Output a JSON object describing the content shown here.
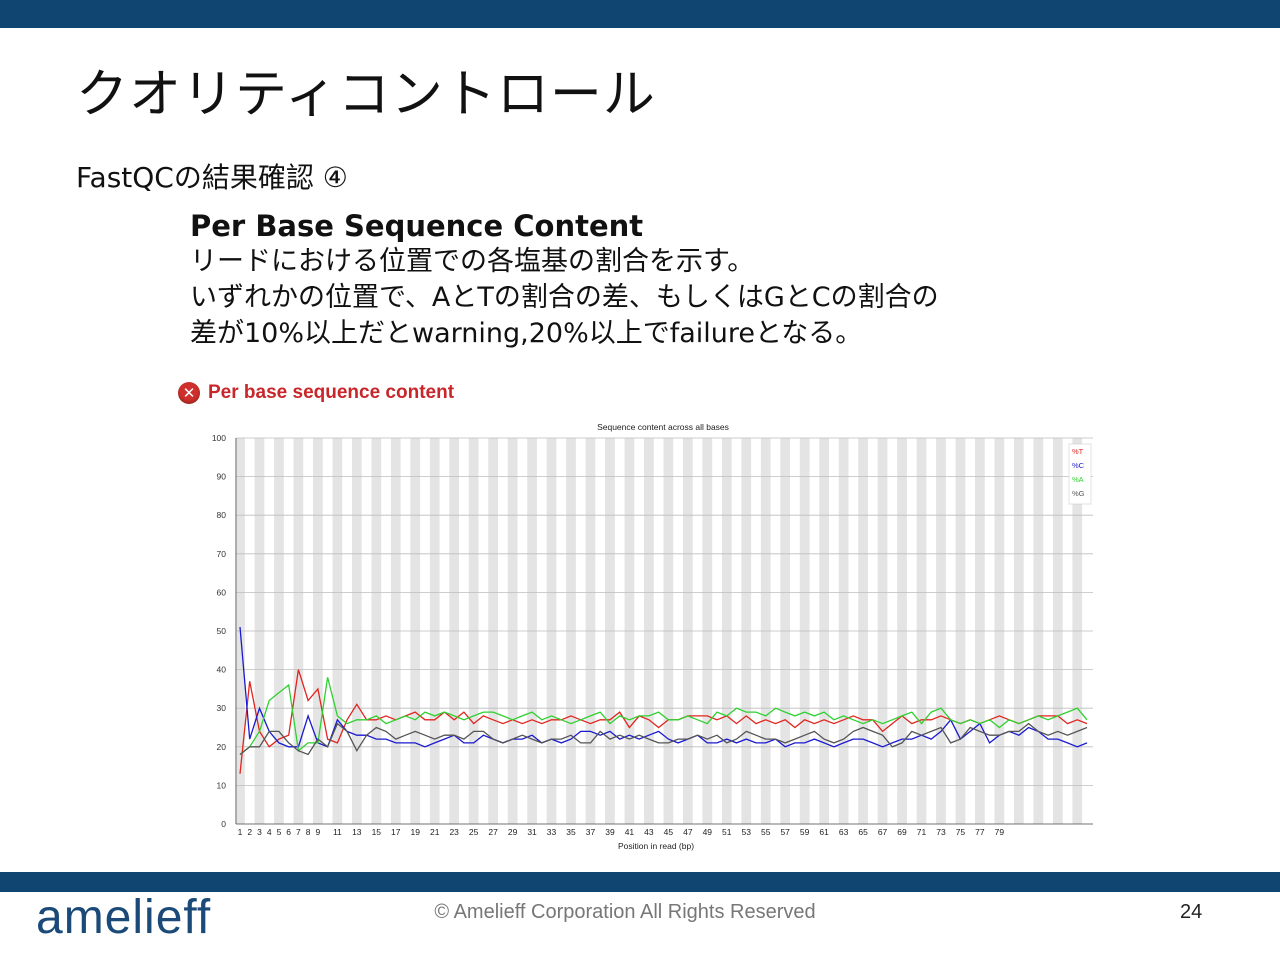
{
  "slide": {
    "title": "クオリティコントロール",
    "subtitle": "FastQCの結果確認 ④",
    "heading": "Per Base Sequence Content",
    "lines": [
      "リードにおける位置での各塩基の割合を示す。",
      "いずれかの位置で、AとTの割合の差、もしくはGとCの割合の",
      "差が10%以上だとwarning,20%以上でfailureとなる。"
    ],
    "fastqc_title": "Per base sequence content",
    "fastqc_status_icon": "failure-cross-icon"
  },
  "footer": {
    "logo": "amelieff",
    "copyright": "© Amelieff Corporation All Rights Reserved",
    "page": "24"
  },
  "colors": {
    "topbar": "#0f4570",
    "T": "#e0261f",
    "C": "#1a1ad0",
    "A": "#2fd12f",
    "G": "#555555"
  },
  "chart_data": {
    "type": "line",
    "title": "Sequence content across all bases",
    "xlabel": "Position in read (bp)",
    "ylabel": "",
    "ylim": [
      0,
      100
    ],
    "yticks": [
      0,
      10,
      20,
      30,
      40,
      50,
      60,
      70,
      80,
      90,
      100
    ],
    "xtick_labels": [
      "1",
      "2",
      "3",
      "4",
      "5",
      "6",
      "7",
      "8",
      "9",
      "11",
      "13",
      "15",
      "17",
      "19",
      "21",
      "23",
      "25",
      "27",
      "29",
      "31",
      "33",
      "35",
      "37",
      "39",
      "41",
      "43",
      "45",
      "47",
      "49",
      "51",
      "53",
      "55",
      "57",
      "59",
      "61",
      "63",
      "65",
      "67",
      "69",
      "71",
      "73",
      "75",
      "77",
      "79"
    ],
    "grid": true,
    "alternating_bands": true,
    "legend_position": "top-right",
    "series": [
      {
        "name": "%T",
        "color": "#e0261f",
        "values": [
          13,
          37,
          24,
          20,
          22,
          23,
          40,
          32,
          35,
          22,
          21,
          27,
          31,
          27,
          27,
          28,
          27,
          28,
          29,
          27,
          27,
          29,
          27,
          29,
          26,
          28,
          27,
          26,
          27,
          26,
          27,
          26,
          27,
          27,
          28,
          27,
          26,
          27,
          27,
          29,
          25,
          28,
          27,
          25,
          27,
          27,
          28,
          28,
          28,
          27,
          28,
          26,
          28,
          26,
          27,
          26,
          27,
          25,
          27,
          26,
          27,
          26,
          27,
          28,
          27,
          27,
          24,
          26,
          28,
          26,
          27,
          27,
          28,
          27,
          26,
          27,
          26,
          27,
          28,
          27,
          26,
          27,
          28,
          28,
          28,
          26,
          27,
          26
        ]
      },
      {
        "name": "%C",
        "color": "#1a1ad0",
        "values": [
          51,
          22,
          30,
          24,
          21,
          20,
          20,
          28,
          21,
          20,
          27,
          24,
          23,
          23,
          22,
          22,
          21,
          21,
          21,
          20,
          21,
          22,
          23,
          21,
          21,
          23,
          22,
          21,
          22,
          22,
          23,
          21,
          22,
          21,
          22,
          24,
          24,
          23,
          24,
          22,
          23,
          22,
          23,
          24,
          22,
          21,
          22,
          23,
          21,
          21,
          22,
          21,
          22,
          21,
          21,
          22,
          20,
          21,
          21,
          22,
          21,
          20,
          21,
          22,
          22,
          21,
          20,
          21,
          22,
          22,
          23,
          22,
          24,
          27,
          22,
          24,
          26,
          21,
          23,
          24,
          23,
          25,
          24,
          22,
          22,
          21,
          20,
          21
        ]
      },
      {
        "name": "%A",
        "color": "#2fd12f",
        "values": [
          18,
          20,
          24,
          32,
          34,
          36,
          19,
          21,
          21,
          38,
          28,
          26,
          27,
          27,
          28,
          26,
          27,
          28,
          27,
          29,
          28,
          29,
          28,
          27,
          28,
          29,
          29,
          28,
          27,
          28,
          29,
          27,
          28,
          27,
          26,
          27,
          28,
          29,
          26,
          28,
          27,
          28,
          28,
          29,
          27,
          27,
          28,
          27,
          26,
          29,
          28,
          30,
          29,
          29,
          28,
          30,
          29,
          28,
          29,
          28,
          29,
          27,
          28,
          27,
          26,
          27,
          26,
          27,
          28,
          29,
          26,
          29,
          30,
          27,
          26,
          27,
          26,
          27,
          25,
          27,
          26,
          27,
          28,
          27,
          28,
          29,
          30,
          27
        ]
      },
      {
        "name": "%G",
        "color": "#555555",
        "values": [
          18,
          20,
          20,
          24,
          24,
          21,
          19,
          18,
          22,
          20,
          26,
          24,
          19,
          23,
          25,
          24,
          22,
          23,
          24,
          23,
          22,
          23,
          23,
          22,
          24,
          24,
          22,
          21,
          22,
          23,
          22,
          21,
          22,
          22,
          23,
          21,
          21,
          24,
          22,
          23,
          22,
          23,
          22,
          21,
          21,
          22,
          22,
          23,
          22,
          23,
          21,
          22,
          24,
          23,
          22,
          22,
          21,
          22,
          23,
          24,
          22,
          21,
          22,
          24,
          25,
          24,
          23,
          20,
          21,
          24,
          23,
          24,
          25,
          21,
          22,
          25,
          24,
          23,
          23,
          24,
          24,
          26,
          24,
          23,
          24,
          23,
          24,
          25
        ]
      }
    ]
  }
}
